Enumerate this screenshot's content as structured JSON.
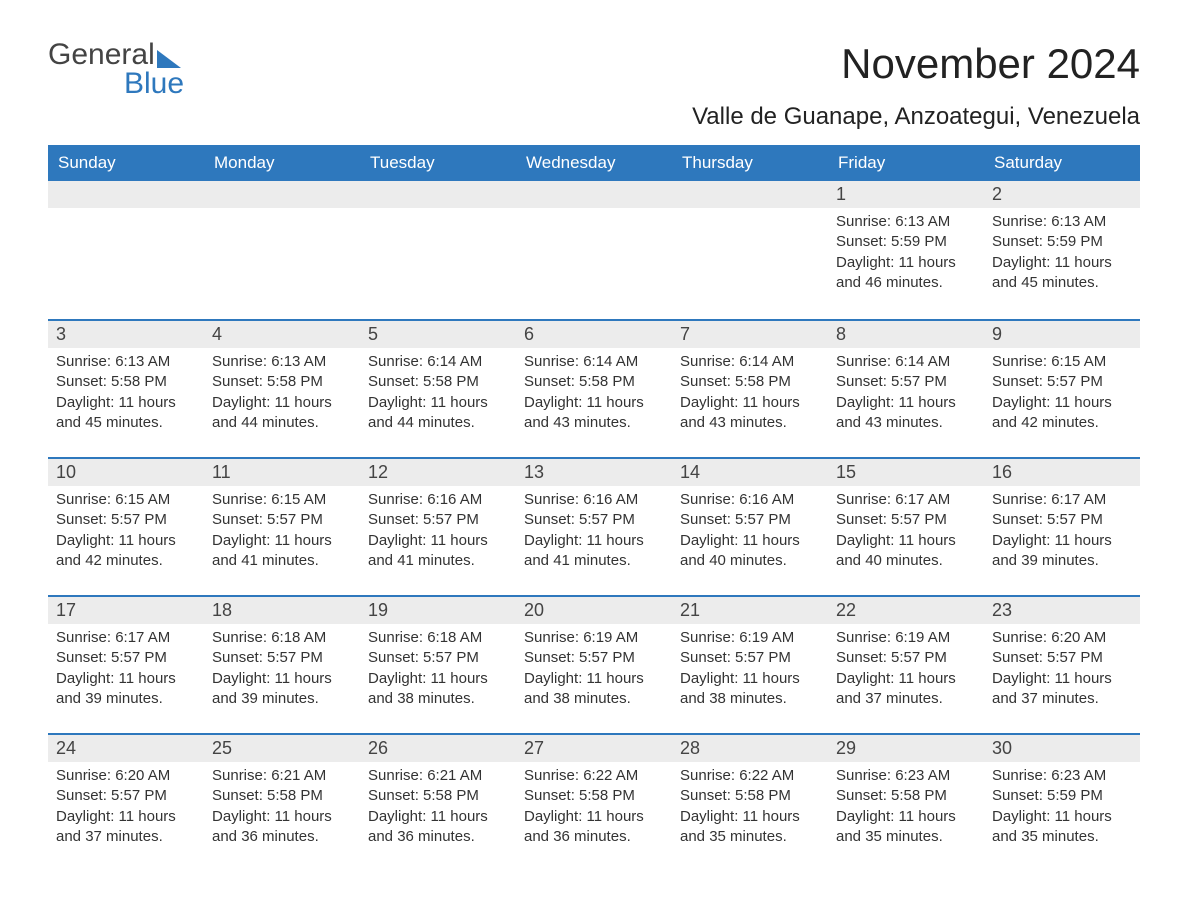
{
  "logo": {
    "word1": "General",
    "word2": "Blue",
    "accent_color": "#2e78bd"
  },
  "title": "November 2024",
  "location": "Valle de Guanape, Anzoategui, Venezuela",
  "header_bg": "#2e78bd",
  "header_fg": "#ffffff",
  "daynum_bg": "#ececec",
  "text_color": "#333333",
  "day_headers": [
    "Sunday",
    "Monday",
    "Tuesday",
    "Wednesday",
    "Thursday",
    "Friday",
    "Saturday"
  ],
  "weeks": [
    [
      null,
      null,
      null,
      null,
      null,
      {
        "n": "1",
        "sunrise": "Sunrise: 6:13 AM",
        "sunset": "Sunset: 5:59 PM",
        "daylight": "Daylight: 11 hours and 46 minutes."
      },
      {
        "n": "2",
        "sunrise": "Sunrise: 6:13 AM",
        "sunset": "Sunset: 5:59 PM",
        "daylight": "Daylight: 11 hours and 45 minutes."
      }
    ],
    [
      {
        "n": "3",
        "sunrise": "Sunrise: 6:13 AM",
        "sunset": "Sunset: 5:58 PM",
        "daylight": "Daylight: 11 hours and 45 minutes."
      },
      {
        "n": "4",
        "sunrise": "Sunrise: 6:13 AM",
        "sunset": "Sunset: 5:58 PM",
        "daylight": "Daylight: 11 hours and 44 minutes."
      },
      {
        "n": "5",
        "sunrise": "Sunrise: 6:14 AM",
        "sunset": "Sunset: 5:58 PM",
        "daylight": "Daylight: 11 hours and 44 minutes."
      },
      {
        "n": "6",
        "sunrise": "Sunrise: 6:14 AM",
        "sunset": "Sunset: 5:58 PM",
        "daylight": "Daylight: 11 hours and 43 minutes."
      },
      {
        "n": "7",
        "sunrise": "Sunrise: 6:14 AM",
        "sunset": "Sunset: 5:58 PM",
        "daylight": "Daylight: 11 hours and 43 minutes."
      },
      {
        "n": "8",
        "sunrise": "Sunrise: 6:14 AM",
        "sunset": "Sunset: 5:57 PM",
        "daylight": "Daylight: 11 hours and 43 minutes."
      },
      {
        "n": "9",
        "sunrise": "Sunrise: 6:15 AM",
        "sunset": "Sunset: 5:57 PM",
        "daylight": "Daylight: 11 hours and 42 minutes."
      }
    ],
    [
      {
        "n": "10",
        "sunrise": "Sunrise: 6:15 AM",
        "sunset": "Sunset: 5:57 PM",
        "daylight": "Daylight: 11 hours and 42 minutes."
      },
      {
        "n": "11",
        "sunrise": "Sunrise: 6:15 AM",
        "sunset": "Sunset: 5:57 PM",
        "daylight": "Daylight: 11 hours and 41 minutes."
      },
      {
        "n": "12",
        "sunrise": "Sunrise: 6:16 AM",
        "sunset": "Sunset: 5:57 PM",
        "daylight": "Daylight: 11 hours and 41 minutes."
      },
      {
        "n": "13",
        "sunrise": "Sunrise: 6:16 AM",
        "sunset": "Sunset: 5:57 PM",
        "daylight": "Daylight: 11 hours and 41 minutes."
      },
      {
        "n": "14",
        "sunrise": "Sunrise: 6:16 AM",
        "sunset": "Sunset: 5:57 PM",
        "daylight": "Daylight: 11 hours and 40 minutes."
      },
      {
        "n": "15",
        "sunrise": "Sunrise: 6:17 AM",
        "sunset": "Sunset: 5:57 PM",
        "daylight": "Daylight: 11 hours and 40 minutes."
      },
      {
        "n": "16",
        "sunrise": "Sunrise: 6:17 AM",
        "sunset": "Sunset: 5:57 PM",
        "daylight": "Daylight: 11 hours and 39 minutes."
      }
    ],
    [
      {
        "n": "17",
        "sunrise": "Sunrise: 6:17 AM",
        "sunset": "Sunset: 5:57 PM",
        "daylight": "Daylight: 11 hours and 39 minutes."
      },
      {
        "n": "18",
        "sunrise": "Sunrise: 6:18 AM",
        "sunset": "Sunset: 5:57 PM",
        "daylight": "Daylight: 11 hours and 39 minutes."
      },
      {
        "n": "19",
        "sunrise": "Sunrise: 6:18 AM",
        "sunset": "Sunset: 5:57 PM",
        "daylight": "Daylight: 11 hours and 38 minutes."
      },
      {
        "n": "20",
        "sunrise": "Sunrise: 6:19 AM",
        "sunset": "Sunset: 5:57 PM",
        "daylight": "Daylight: 11 hours and 38 minutes."
      },
      {
        "n": "21",
        "sunrise": "Sunrise: 6:19 AM",
        "sunset": "Sunset: 5:57 PM",
        "daylight": "Daylight: 11 hours and 38 minutes."
      },
      {
        "n": "22",
        "sunrise": "Sunrise: 6:19 AM",
        "sunset": "Sunset: 5:57 PM",
        "daylight": "Daylight: 11 hours and 37 minutes."
      },
      {
        "n": "23",
        "sunrise": "Sunrise: 6:20 AM",
        "sunset": "Sunset: 5:57 PM",
        "daylight": "Daylight: 11 hours and 37 minutes."
      }
    ],
    [
      {
        "n": "24",
        "sunrise": "Sunrise: 6:20 AM",
        "sunset": "Sunset: 5:57 PM",
        "daylight": "Daylight: 11 hours and 37 minutes."
      },
      {
        "n": "25",
        "sunrise": "Sunrise: 6:21 AM",
        "sunset": "Sunset: 5:58 PM",
        "daylight": "Daylight: 11 hours and 36 minutes."
      },
      {
        "n": "26",
        "sunrise": "Sunrise: 6:21 AM",
        "sunset": "Sunset: 5:58 PM",
        "daylight": "Daylight: 11 hours and 36 minutes."
      },
      {
        "n": "27",
        "sunrise": "Sunrise: 6:22 AM",
        "sunset": "Sunset: 5:58 PM",
        "daylight": "Daylight: 11 hours and 36 minutes."
      },
      {
        "n": "28",
        "sunrise": "Sunrise: 6:22 AM",
        "sunset": "Sunset: 5:58 PM",
        "daylight": "Daylight: 11 hours and 35 minutes."
      },
      {
        "n": "29",
        "sunrise": "Sunrise: 6:23 AM",
        "sunset": "Sunset: 5:58 PM",
        "daylight": "Daylight: 11 hours and 35 minutes."
      },
      {
        "n": "30",
        "sunrise": "Sunrise: 6:23 AM",
        "sunset": "Sunset: 5:59 PM",
        "daylight": "Daylight: 11 hours and 35 minutes."
      }
    ]
  ]
}
